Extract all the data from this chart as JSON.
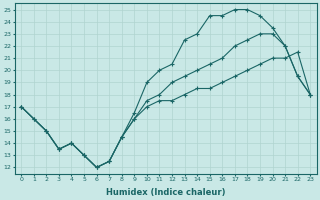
{
  "xlabel": "Humidex (Indice chaleur)",
  "xlim": [
    -0.5,
    23.5
  ],
  "ylim": [
    11.5,
    25.5
  ],
  "yticks": [
    12,
    13,
    14,
    15,
    16,
    17,
    18,
    19,
    20,
    21,
    22,
    23,
    24,
    25
  ],
  "xticks": [
    0,
    1,
    2,
    3,
    4,
    5,
    6,
    7,
    8,
    9,
    10,
    11,
    12,
    13,
    14,
    15,
    16,
    17,
    18,
    19,
    20,
    21,
    22,
    23
  ],
  "bg_color": "#c9e8e6",
  "line_color": "#1a6666",
  "grid_color": "#b0d4d0",
  "line1_x": [
    0,
    1,
    2,
    3,
    4,
    5,
    6,
    7,
    8,
    9,
    10,
    11,
    12,
    13,
    14,
    15,
    16,
    17,
    18,
    19,
    20,
    21,
    22,
    23
  ],
  "line1_y": [
    17,
    16,
    15,
    13.5,
    14,
    13,
    12,
    12.5,
    14.5,
    16,
    17.5,
    18,
    19,
    19.5,
    20,
    20.5,
    21,
    22,
    22.5,
    23,
    23,
    22,
    19.5,
    18
  ],
  "line2_x": [
    0,
    2,
    3,
    4,
    5,
    6,
    7,
    8,
    9,
    10,
    11,
    12,
    13,
    14,
    15,
    16,
    17,
    18,
    19,
    20,
    21,
    22,
    23
  ],
  "line2_y": [
    17,
    15,
    13.5,
    14,
    13,
    12,
    12.5,
    14.5,
    16.5,
    19,
    20,
    20.5,
    22.5,
    23,
    24.5,
    24.5,
    25,
    25,
    24.5,
    23.5,
    22,
    19.5,
    18
  ],
  "line3_x": [
    0,
    1,
    2,
    3,
    4,
    5,
    6,
    7,
    8,
    9,
    10,
    11,
    12,
    13,
    14,
    15,
    16,
    17,
    18,
    19,
    20,
    21,
    22,
    23
  ],
  "line3_y": [
    17,
    16,
    15,
    13.5,
    14,
    13,
    12,
    12.5,
    14.5,
    16,
    17,
    17.5,
    17.5,
    18,
    18.5,
    18.5,
    19,
    19.5,
    20,
    20.5,
    21,
    21,
    21.5,
    18
  ]
}
